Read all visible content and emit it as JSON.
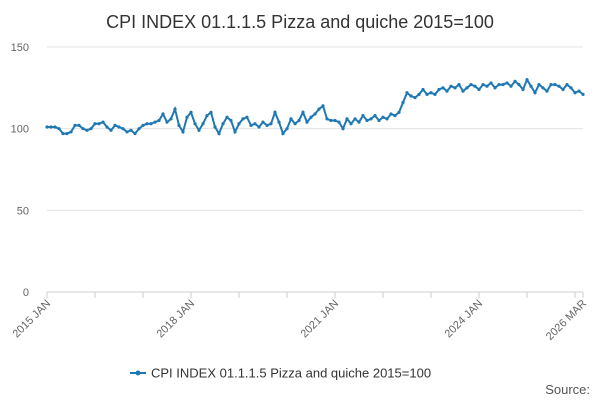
{
  "chart_data": {
    "type": "line",
    "title": "CPI INDEX 01.1.1.5 Pizza and quiche 2015=100",
    "source": "Source:",
    "categories": [
      "2015 JAN",
      null,
      null,
      null,
      null,
      null,
      null,
      null,
      null,
      null,
      null,
      null,
      null,
      null,
      null,
      null,
      null,
      null,
      null,
      null,
      null,
      null,
      null,
      null,
      null,
      null,
      null,
      null,
      null,
      null,
      null,
      null,
      null,
      null,
      null,
      null,
      "2018 JAN",
      null,
      null,
      null,
      null,
      null,
      null,
      null,
      null,
      null,
      null,
      null,
      null,
      null,
      null,
      null,
      null,
      null,
      null,
      null,
      null,
      null,
      null,
      null,
      null,
      null,
      null,
      null,
      null,
      null,
      null,
      null,
      null,
      null,
      null,
      null,
      "2021 JAN",
      null,
      null,
      null,
      null,
      null,
      null,
      null,
      null,
      null,
      null,
      null,
      null,
      null,
      null,
      null,
      null,
      null,
      null,
      null,
      null,
      null,
      null,
      null,
      null,
      null,
      null,
      null,
      null,
      null,
      null,
      null,
      null,
      null,
      null,
      null,
      "2024 JAN",
      null,
      null,
      null,
      null,
      null,
      null,
      null,
      null,
      null,
      null,
      null,
      null,
      null,
      null,
      null,
      null,
      null,
      null,
      null,
      null,
      null,
      null,
      null,
      null,
      null,
      "2026 MAR"
    ],
    "series": [
      {
        "name": "CPI INDEX 01.1.1.5 Pizza and quiche 2015=100",
        "color": "#1f78b4",
        "values": [
          101,
          101,
          101,
          100,
          97,
          97,
          98,
          102,
          102,
          100,
          99,
          100,
          103,
          103,
          104,
          101,
          99,
          102,
          101,
          100,
          98,
          99,
          97,
          100,
          102,
          103,
          103,
          104,
          105,
          109,
          104,
          106,
          112,
          102,
          98,
          107,
          110,
          103,
          99,
          103,
          108,
          110,
          101,
          97,
          103,
          107,
          105,
          98,
          103,
          106,
          107,
          102,
          103,
          101,
          104,
          102,
          103,
          110,
          104,
          97,
          100,
          106,
          103,
          105,
          110,
          104,
          107,
          109,
          112,
          114,
          106,
          105,
          105,
          104,
          100,
          106,
          103,
          106,
          104,
          108,
          105,
          106,
          108,
          105,
          107,
          106,
          109,
          108,
          110,
          116,
          122,
          120,
          119,
          121,
          124,
          121,
          122,
          121,
          124,
          125,
          123,
          126,
          125,
          127,
          123,
          125,
          127,
          126,
          124,
          127,
          126,
          128,
          125,
          127,
          127,
          128,
          126,
          129,
          127,
          124,
          130,
          126,
          122,
          127,
          125,
          123,
          127,
          127,
          126,
          124,
          127,
          125,
          122,
          123,
          121
        ]
      }
    ],
    "ylim": [
      0,
      150
    ],
    "yticks": [
      0,
      50,
      100,
      150
    ],
    "grid": true
  }
}
